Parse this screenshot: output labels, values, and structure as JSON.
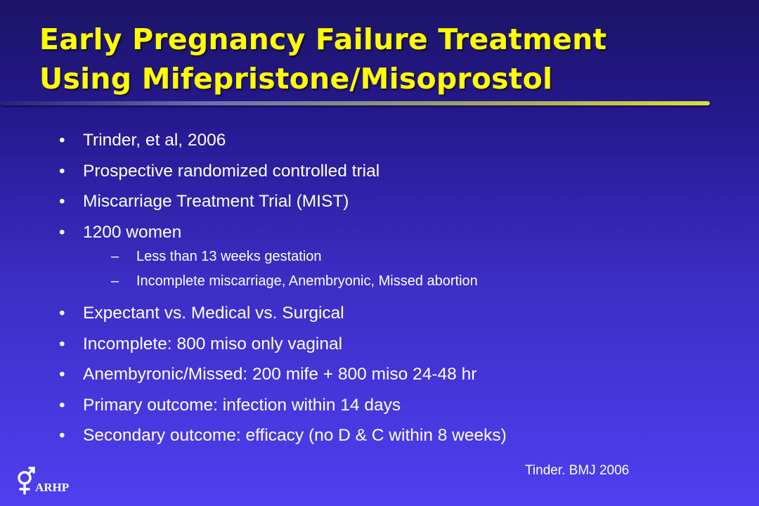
{
  "slide": {
    "title_line1": "Early Pregnancy Failure Treatment",
    "title_line2": "Using Mifepristone/Misoprostol",
    "bullet_marker": "•",
    "sub_marker": "–",
    "bullets": [
      "Trinder, et al, 2006",
      "Prospective randomized controlled trial",
      "Miscarriage Treatment Trial (MIST)",
      "1200 women",
      "Expectant vs. Medical vs. Surgical",
      "Incomplete: 800 miso only vaginal",
      "Anembyronic/Missed: 200 mife + 800 miso 24-48 hr",
      "Primary outcome: infection within 14 days",
      "Secondary outcome: efficacy (no D & C within 8 weeks)"
    ],
    "sub_bullets": [
      "Less than 13 weeks gestation",
      "Incomplete miscarriage, Anembryonic, Missed abortion"
    ],
    "citation": "Tinder. BMJ 2006",
    "logo_text": "ARHP"
  },
  "colors": {
    "background_top": "#1c1466",
    "background_bottom": "#4f3ff0",
    "title": "#ffff00",
    "body_text": "#ffffff"
  },
  "icons": {
    "logo_mark": "gender-symbol-logo-icon"
  }
}
